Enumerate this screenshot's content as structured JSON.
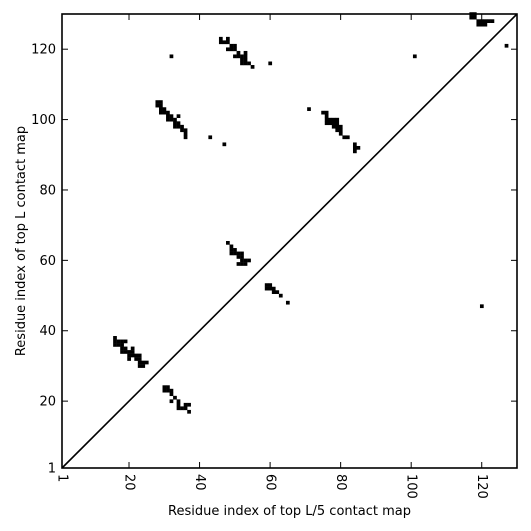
{
  "chart_data": {
    "type": "heatmap",
    "title": "",
    "xlabel": "Residue index of top L/5 contact map",
    "ylabel": "Residue index of top L contact map",
    "xlim": [
      1,
      130
    ],
    "ylim": [
      1,
      130
    ],
    "x_ticks": [
      1,
      20,
      40,
      60,
      80,
      100,
      120
    ],
    "y_ticks": [
      1,
      20,
      40,
      60,
      80,
      100,
      120
    ],
    "x_tick_labels": [
      "1",
      "20",
      "40",
      "60",
      "80",
      "100",
      "120"
    ],
    "y_tick_labels": [
      "1",
      "20",
      "40",
      "60",
      "80",
      "100",
      "120"
    ],
    "x_tick_rotation": "vertical",
    "grid": false,
    "diagonal_line": true,
    "cell_color": "#000000",
    "background_color": "#ffffff",
    "contacts": [
      [
        16,
        38
      ],
      [
        16,
        37
      ],
      [
        17,
        37
      ],
      [
        18,
        37
      ],
      [
        19,
        37
      ],
      [
        17,
        36
      ],
      [
        18,
        36
      ],
      [
        16,
        36
      ],
      [
        18,
        35
      ],
      [
        19,
        35
      ],
      [
        18,
        34
      ],
      [
        19,
        34
      ],
      [
        20,
        34
      ],
      [
        21,
        35
      ],
      [
        21,
        34
      ],
      [
        20,
        33
      ],
      [
        21,
        33
      ],
      [
        22,
        33
      ],
      [
        23,
        33
      ],
      [
        20,
        32
      ],
      [
        22,
        32
      ],
      [
        23,
        32
      ],
      [
        23,
        31
      ],
      [
        24,
        31
      ],
      [
        25,
        31
      ],
      [
        23,
        30
      ],
      [
        24,
        30
      ],
      [
        30,
        24
      ],
      [
        31,
        24
      ],
      [
        30,
        23
      ],
      [
        31,
        23
      ],
      [
        32,
        23
      ],
      [
        32,
        22
      ],
      [
        33,
        21
      ],
      [
        32,
        20
      ],
      [
        34,
        20
      ],
      [
        34,
        19
      ],
      [
        36,
        19
      ],
      [
        37,
        19
      ],
      [
        34,
        18
      ],
      [
        35,
        18
      ],
      [
        36,
        18
      ],
      [
        37,
        17
      ],
      [
        28,
        105
      ],
      [
        29,
        105
      ],
      [
        28,
        104
      ],
      [
        29,
        104
      ],
      [
        29,
        103
      ],
      [
        30,
        103
      ],
      [
        29,
        102
      ],
      [
        30,
        102
      ],
      [
        31,
        102
      ],
      [
        31,
        101
      ],
      [
        32,
        101
      ],
      [
        31,
        100
      ],
      [
        32,
        100
      ],
      [
        33,
        100
      ],
      [
        34,
        101
      ],
      [
        33,
        99
      ],
      [
        34,
        99
      ],
      [
        33,
        98
      ],
      [
        34,
        98
      ],
      [
        35,
        98
      ],
      [
        36,
        97
      ],
      [
        35,
        97
      ],
      [
        36,
        96
      ],
      [
        36,
        95
      ],
      [
        32,
        118
      ],
      [
        43,
        95
      ],
      [
        47,
        93
      ],
      [
        46,
        123
      ],
      [
        48,
        123
      ],
      [
        46,
        122
      ],
      [
        47,
        122
      ],
      [
        48,
        122
      ],
      [
        49,
        121
      ],
      [
        50,
        121
      ],
      [
        48,
        120
      ],
      [
        49,
        120
      ],
      [
        50,
        120
      ],
      [
        51,
        119
      ],
      [
        53,
        119
      ],
      [
        50,
        118
      ],
      [
        51,
        118
      ],
      [
        52,
        118
      ],
      [
        53,
        118
      ],
      [
        52,
        117
      ],
      [
        53,
        117
      ],
      [
        52,
        116
      ],
      [
        53,
        116
      ],
      [
        54,
        116
      ],
      [
        55,
        115
      ],
      [
        60,
        116
      ],
      [
        48,
        65
      ],
      [
        49,
        64
      ],
      [
        49,
        63
      ],
      [
        50,
        63
      ],
      [
        49,
        62
      ],
      [
        50,
        62
      ],
      [
        51,
        62
      ],
      [
        52,
        62
      ],
      [
        51,
        61
      ],
      [
        52,
        61
      ],
      [
        52,
        60
      ],
      [
        53,
        60
      ],
      [
        54,
        60
      ],
      [
        51,
        59
      ],
      [
        52,
        59
      ],
      [
        53,
        59
      ],
      [
        59,
        53
      ],
      [
        60,
        53
      ],
      [
        59,
        52
      ],
      [
        60,
        52
      ],
      [
        61,
        52
      ],
      [
        61,
        51
      ],
      [
        62,
        51
      ],
      [
        63,
        50
      ],
      [
        65,
        48
      ],
      [
        71,
        103
      ],
      [
        75,
        102
      ],
      [
        76,
        102
      ],
      [
        76,
        101
      ],
      [
        77,
        100
      ],
      [
        78,
        100
      ],
      [
        79,
        100
      ],
      [
        76,
        100
      ],
      [
        76,
        99
      ],
      [
        77,
        99
      ],
      [
        78,
        99
      ],
      [
        79,
        99
      ],
      [
        78,
        98
      ],
      [
        79,
        98
      ],
      [
        80,
        98
      ],
      [
        79,
        97
      ],
      [
        80,
        97
      ],
      [
        80,
        96
      ],
      [
        81,
        95
      ],
      [
        82,
        95
      ],
      [
        84,
        93
      ],
      [
        85,
        92
      ],
      [
        84,
        92
      ],
      [
        84,
        91
      ],
      [
        101,
        118
      ],
      [
        120,
        47
      ],
      [
        117,
        130
      ],
      [
        118,
        130
      ],
      [
        117,
        129
      ],
      [
        118,
        129
      ],
      [
        119,
        128
      ],
      [
        120,
        128
      ],
      [
        121,
        128
      ],
      [
        122,
        128
      ],
      [
        123,
        128
      ],
      [
        119,
        127
      ],
      [
        120,
        127
      ],
      [
        121,
        127
      ],
      [
        127,
        121
      ]
    ]
  }
}
